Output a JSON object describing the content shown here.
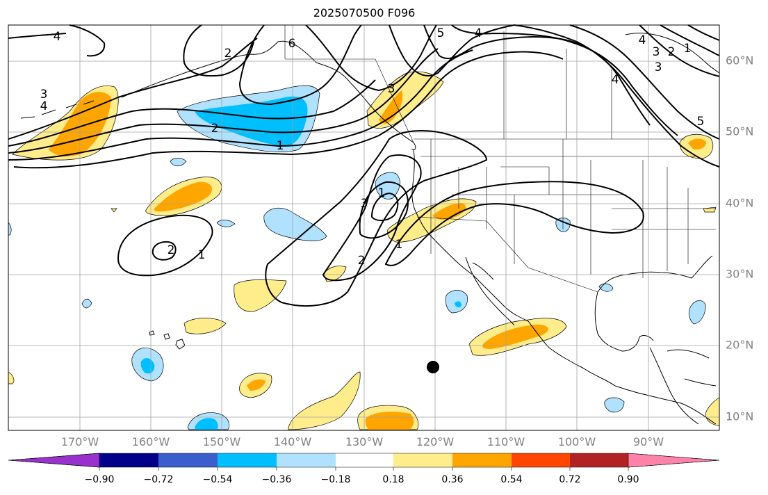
{
  "title": "2025070500 F096",
  "map": {
    "projection": "cylindrical",
    "lon_range": [
      -180,
      -80
    ],
    "lat_range": [
      8,
      65
    ],
    "lon_ticks": [
      "170°W",
      "160°W",
      "150°W",
      "140°W",
      "130°W",
      "120°W",
      "110°W",
      "100°W",
      "90°W"
    ],
    "lat_ticks": [
      "10°N",
      "20°N",
      "30°N",
      "40°N",
      "50°N",
      "60°N"
    ],
    "grid": true,
    "marker": {
      "label": "",
      "lon": -120,
      "lat": 17
    }
  },
  "contour_labels": [
    "4",
    "3",
    "4",
    "2",
    "1",
    "6",
    "5",
    "4",
    "3",
    "3",
    "4",
    "3",
    "2",
    "1",
    "2",
    "4",
    "1",
    "3",
    "2",
    "1",
    "2",
    "1",
    "5"
  ],
  "colorbar": {
    "ticks": [
      "−0.90",
      "−0.72",
      "−0.54",
      "−0.36",
      "−0.18",
      "0.18",
      "0.36",
      "0.54",
      "0.72",
      "0.90"
    ],
    "colors": [
      "#9932cc",
      "#00008b",
      "#3a5fcd",
      "#00bfff",
      "#b0e2ff",
      "#ffffff",
      "#ffec8b",
      "#ffa500",
      "#ff4500",
      "#b22222",
      "#ff82ab"
    ],
    "extend": "both"
  }
}
